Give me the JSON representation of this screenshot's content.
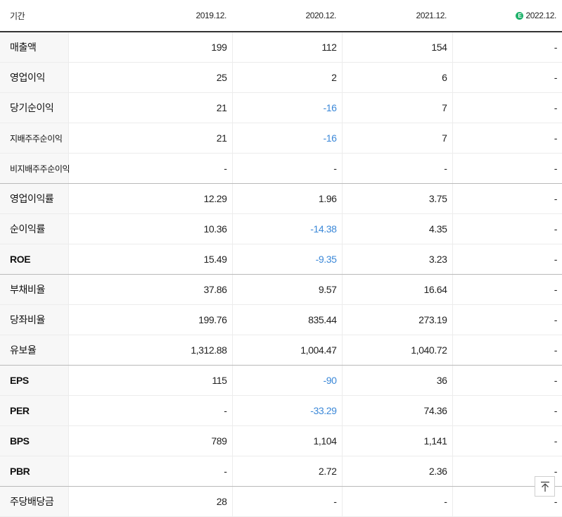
{
  "table": {
    "header": {
      "label": "기간",
      "periods": [
        "2019.12.",
        "2020.12.",
        "2021.12.",
        "2022.12."
      ],
      "estimate_badge": "E"
    },
    "rows": [
      {
        "label": "매출액",
        "values": [
          "199",
          "112",
          "154",
          "-"
        ]
      },
      {
        "label": "영업이익",
        "values": [
          "25",
          "2",
          "6",
          "-"
        ]
      },
      {
        "label": "당기순이익",
        "values": [
          "21",
          "-16",
          "7",
          "-"
        ]
      },
      {
        "label": "지배주주순이익",
        "values": [
          "21",
          "-16",
          "7",
          "-"
        ]
      },
      {
        "label": "비지배주주순이익",
        "values": [
          "-",
          "-",
          "-",
          "-"
        ]
      },
      {
        "label": "영업이익률",
        "values": [
          "12.29",
          "1.96",
          "3.75",
          "-"
        ]
      },
      {
        "label": "순이익률",
        "values": [
          "10.36",
          "-14.38",
          "4.35",
          "-"
        ]
      },
      {
        "label": "ROE",
        "values": [
          "15.49",
          "-9.35",
          "3.23",
          "-"
        ]
      },
      {
        "label": "부채비율",
        "values": [
          "37.86",
          "9.57",
          "16.64",
          "-"
        ]
      },
      {
        "label": "당좌비율",
        "values": [
          "199.76",
          "835.44",
          "273.19",
          "-"
        ]
      },
      {
        "label": "유보율",
        "values": [
          "1,312.88",
          "1,004.47",
          "1,040.72",
          "-"
        ]
      },
      {
        "label": "EPS",
        "values": [
          "115",
          "-90",
          "36",
          "-"
        ]
      },
      {
        "label": "PER",
        "values": [
          "-",
          "-33.29",
          "74.36",
          "-"
        ]
      },
      {
        "label": "BPS",
        "values": [
          "789",
          "1,104",
          "1,141",
          "-"
        ]
      },
      {
        "label": "PBR",
        "values": [
          "-",
          "2.72",
          "2.36",
          "-"
        ]
      },
      {
        "label": "주당배당금",
        "values": [
          "28",
          "-",
          "-",
          "-"
        ]
      }
    ]
  },
  "colors": {
    "negative": "#3b88d8",
    "estimate_badge": "#1fb26b",
    "header_rule": "#333333",
    "label_background": "#f7f7f7"
  },
  "scroll_top_icon": "arrow-up-icon"
}
